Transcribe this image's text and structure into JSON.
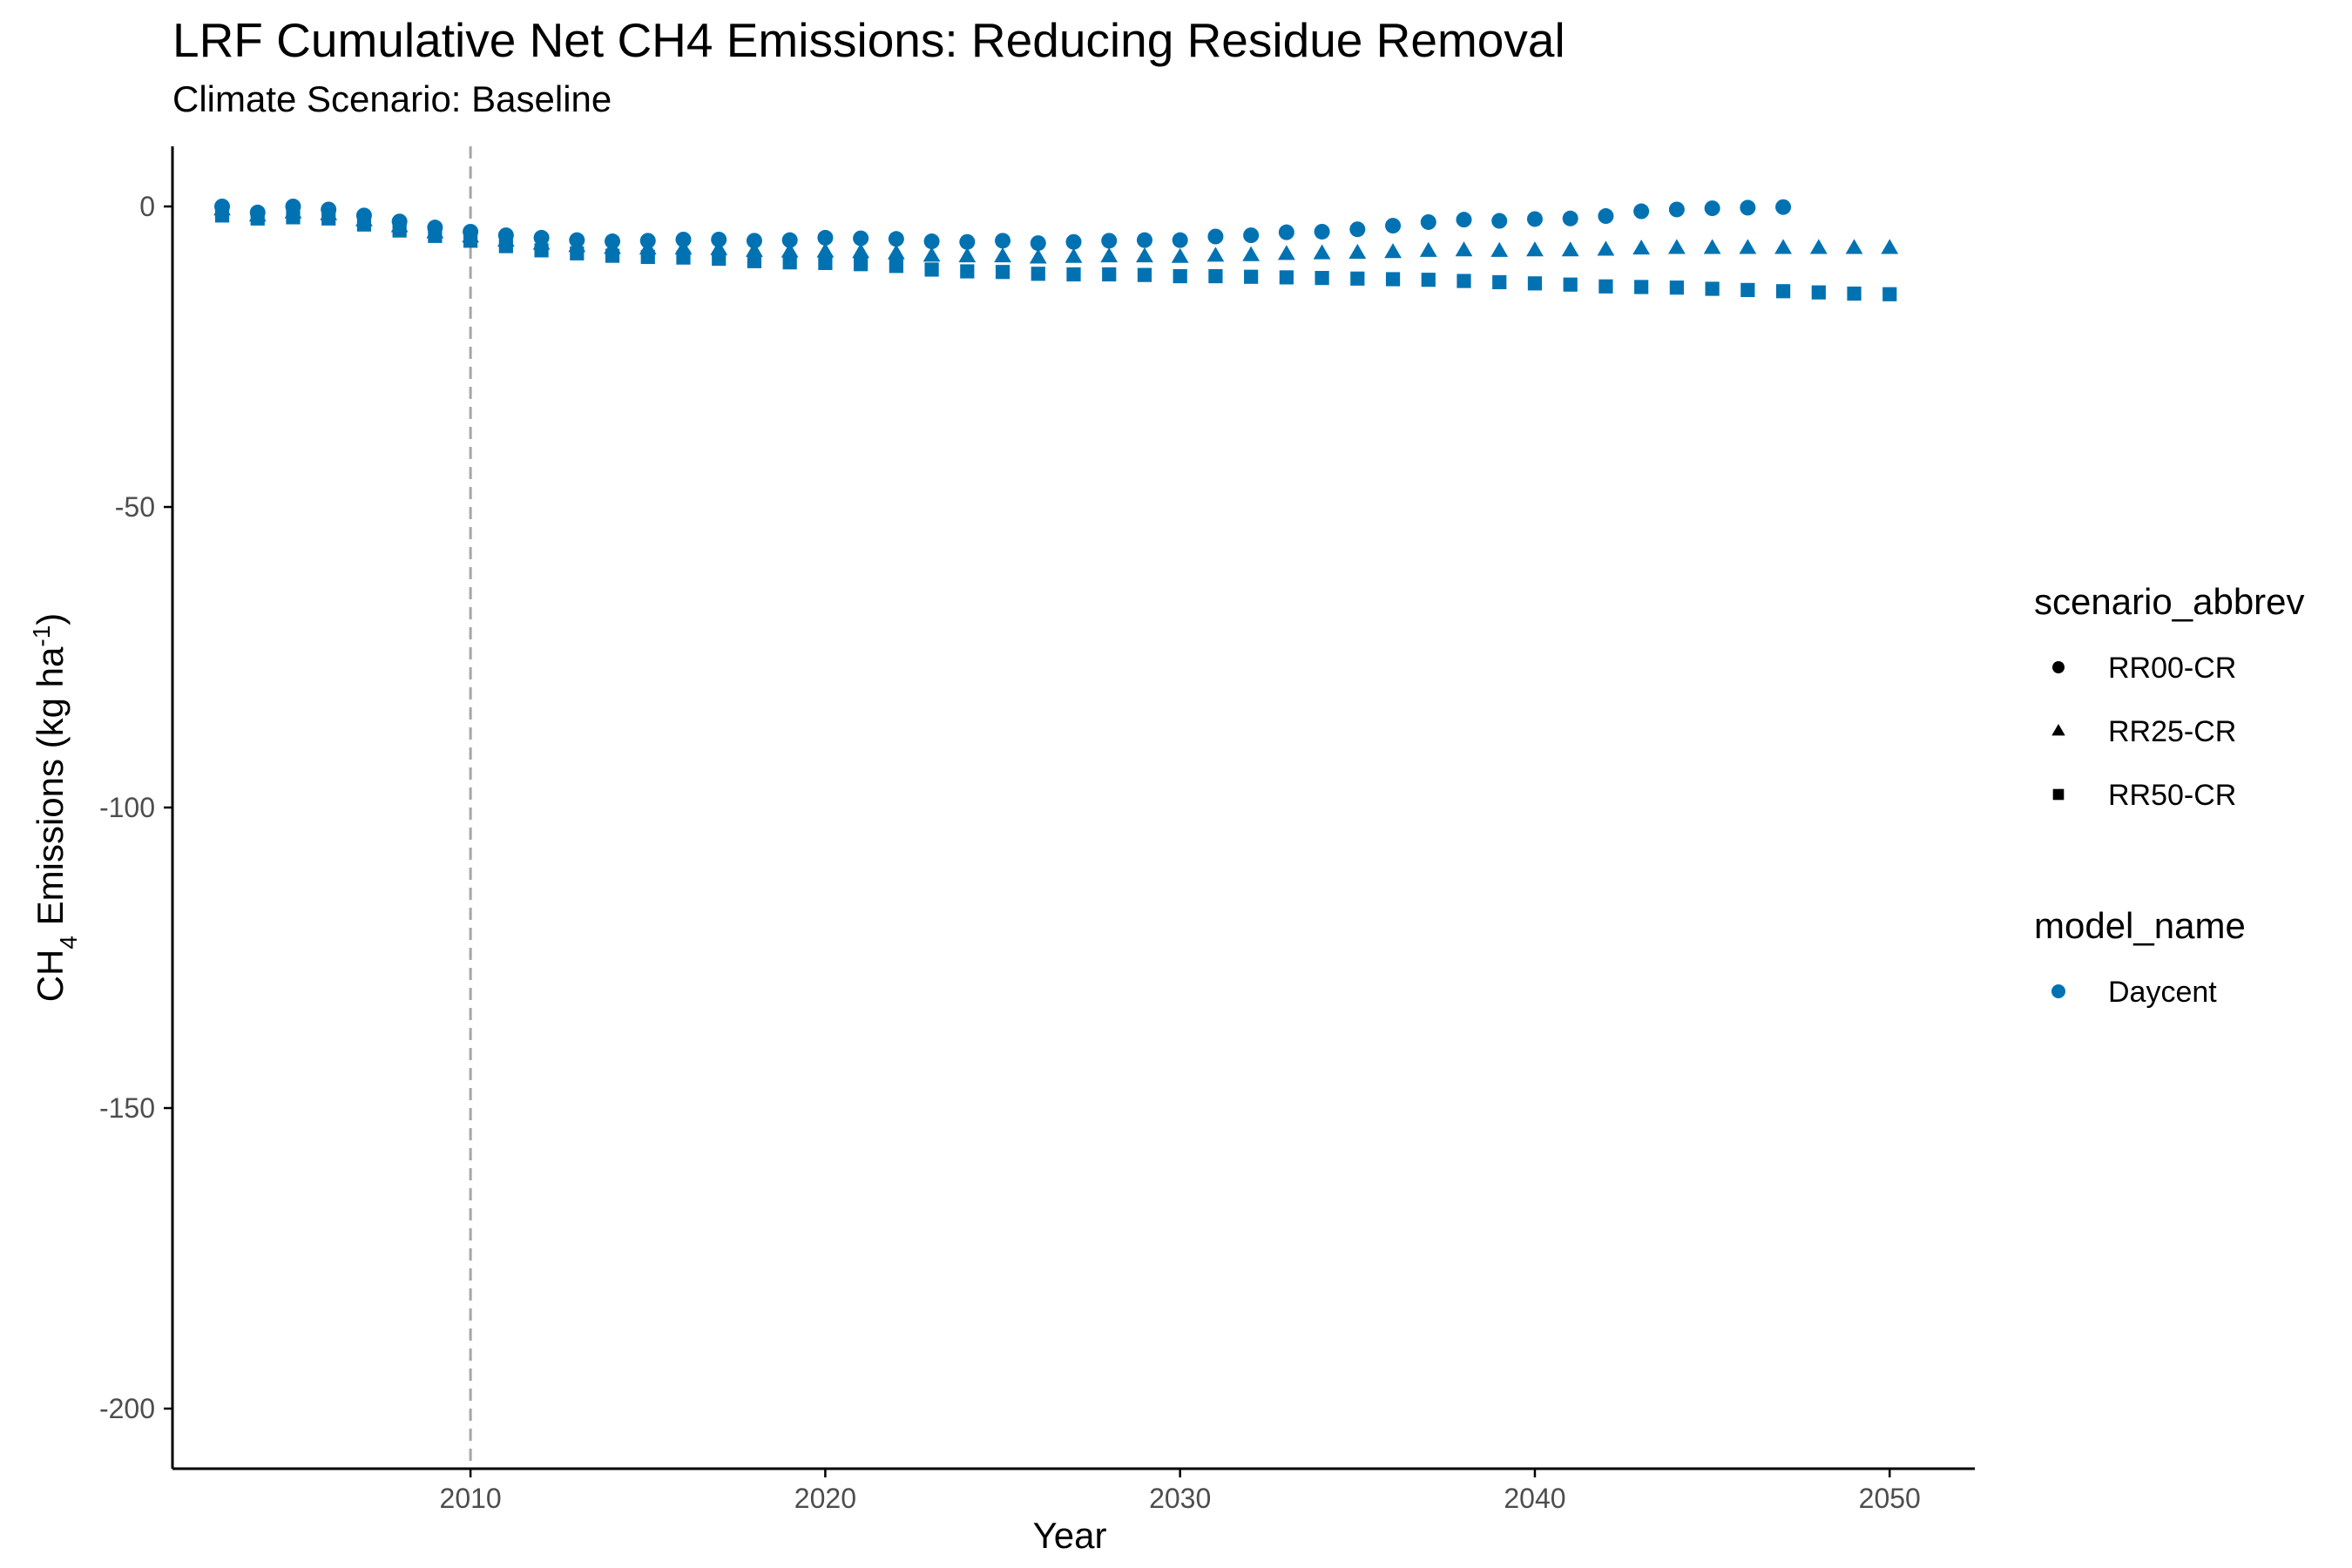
{
  "title": "LRF  Cumulative Net CH4 Emissions: Reducing Residue Removal",
  "subtitle": "Climate Scenario: Baseline",
  "colors": {
    "series": "#0072B2",
    "reference_line": "#a6a6a6",
    "axis": "#000000",
    "tick_text": "#4d4d4d"
  },
  "chart_data": {
    "type": "scatter",
    "xlabel": "Year",
    "ylabel": {
      "base": "CH",
      "sub": "4",
      "mid": " Emissions (kg ha",
      "sup": "-1",
      "end": ")"
    },
    "xlim": [
      2001.6,
      2052.4
    ],
    "ylim": [
      -210,
      10
    ],
    "x_ticks": [
      2010,
      2020,
      2030,
      2040,
      2050
    ],
    "y_ticks": [
      0,
      -50,
      -100,
      -150,
      -200
    ],
    "reference_vline_x": 2010,
    "grid": false,
    "legend_position": "right",
    "legends": [
      {
        "title": "scenario_abbrev",
        "items": [
          {
            "label": "RR00-CR",
            "shape": "circle"
          },
          {
            "label": "RR25-CR",
            "shape": "triangle"
          },
          {
            "label": "RR50-CR",
            "shape": "square"
          }
        ]
      },
      {
        "title": "model_name",
        "items": [
          {
            "label": "Daycent",
            "shape": "circle",
            "color": "#0072B2"
          }
        ]
      }
    ],
    "series": [
      {
        "name": "RR00-CR",
        "model": "Daycent",
        "shape": "circle",
        "x": [
          2003,
          2004,
          2005,
          2006,
          2007,
          2008,
          2009,
          2010,
          2011,
          2012,
          2013,
          2014,
          2015,
          2016,
          2017,
          2018,
          2019,
          2020,
          2021,
          2022,
          2023,
          2024,
          2025,
          2026,
          2027,
          2028,
          2029,
          2030,
          2031,
          2032,
          2033,
          2034,
          2035,
          2036,
          2037,
          2038,
          2039,
          2040,
          2041,
          2042,
          2043,
          2044,
          2045,
          2046,
          2047
        ],
        "y": [
          0,
          -1,
          0,
          -0.5,
          -1.5,
          -2.5,
          -3.5,
          -4.2,
          -4.8,
          -5.2,
          -5.6,
          -5.8,
          -5.7,
          -5.5,
          -5.5,
          -5.7,
          -5.6,
          -5.2,
          -5.3,
          -5.4,
          -5.8,
          -5.9,
          -5.7,
          -6.1,
          -5.9,
          -5.7,
          -5.6,
          -5.6,
          -5.0,
          -4.8,
          -4.3,
          -4.2,
          -3.8,
          -3.2,
          -2.6,
          -2.2,
          -2.4,
          -2.1,
          -2.0,
          -1.6,
          -0.8,
          -0.5,
          -0.3,
          -0.2,
          -0.1
        ]
      },
      {
        "name": "RR25-CR",
        "model": "Daycent",
        "shape": "triangle",
        "x": [
          2003,
          2004,
          2005,
          2006,
          2007,
          2008,
          2009,
          2010,
          2011,
          2012,
          2013,
          2014,
          2015,
          2016,
          2017,
          2018,
          2019,
          2020,
          2021,
          2022,
          2023,
          2024,
          2025,
          2026,
          2027,
          2028,
          2029,
          2030,
          2031,
          2032,
          2033,
          2034,
          2035,
          2036,
          2037,
          2038,
          2039,
          2040,
          2041,
          2042,
          2043,
          2044,
          2045,
          2046,
          2047,
          2048,
          2049,
          2050
        ],
        "y": [
          -0.5,
          -1.5,
          -1,
          -1.3,
          -2.3,
          -3.3,
          -4.3,
          -5,
          -5.7,
          -6.2,
          -6.6,
          -6.9,
          -7,
          -7,
          -7.1,
          -7.4,
          -7.5,
          -7.5,
          -7.6,
          -7.8,
          -8.2,
          -8.3,
          -8.3,
          -8.5,
          -8.4,
          -8.3,
          -8.3,
          -8.4,
          -8.2,
          -8.1,
          -7.9,
          -7.8,
          -7.7,
          -7.6,
          -7.4,
          -7.3,
          -7.4,
          -7.3,
          -7.3,
          -7.2,
          -7.0,
          -6.9,
          -6.9,
          -6.9,
          -6.9,
          -6.9,
          -6.9,
          -6.9
        ]
      },
      {
        "name": "RR50-CR",
        "model": "Daycent",
        "shape": "square",
        "x": [
          2003,
          2004,
          2005,
          2006,
          2007,
          2008,
          2009,
          2010,
          2011,
          2012,
          2013,
          2014,
          2015,
          2016,
          2017,
          2018,
          2019,
          2020,
          2021,
          2022,
          2023,
          2024,
          2025,
          2026,
          2027,
          2028,
          2029,
          2030,
          2031,
          2032,
          2033,
          2034,
          2035,
          2036,
          2037,
          2038,
          2039,
          2040,
          2041,
          2042,
          2043,
          2044,
          2045,
          2046,
          2047,
          2048,
          2049,
          2050
        ],
        "y": [
          -1.5,
          -2,
          -1.8,
          -2,
          -3,
          -4,
          -4.9,
          -5.7,
          -6.6,
          -7.3,
          -7.8,
          -8.2,
          -8.4,
          -8.5,
          -8.7,
          -9.1,
          -9.3,
          -9.4,
          -9.6,
          -9.9,
          -10.5,
          -10.8,
          -10.9,
          -11.2,
          -11.3,
          -11.3,
          -11.4,
          -11.6,
          -11.6,
          -11.7,
          -11.8,
          -11.9,
          -12.0,
          -12.1,
          -12.2,
          -12.4,
          -12.6,
          -12.8,
          -13.0,
          -13.3,
          -13.4,
          -13.5,
          -13.7,
          -13.9,
          -14.1,
          -14.3,
          -14.5,
          -14.6
        ]
      }
    ]
  }
}
